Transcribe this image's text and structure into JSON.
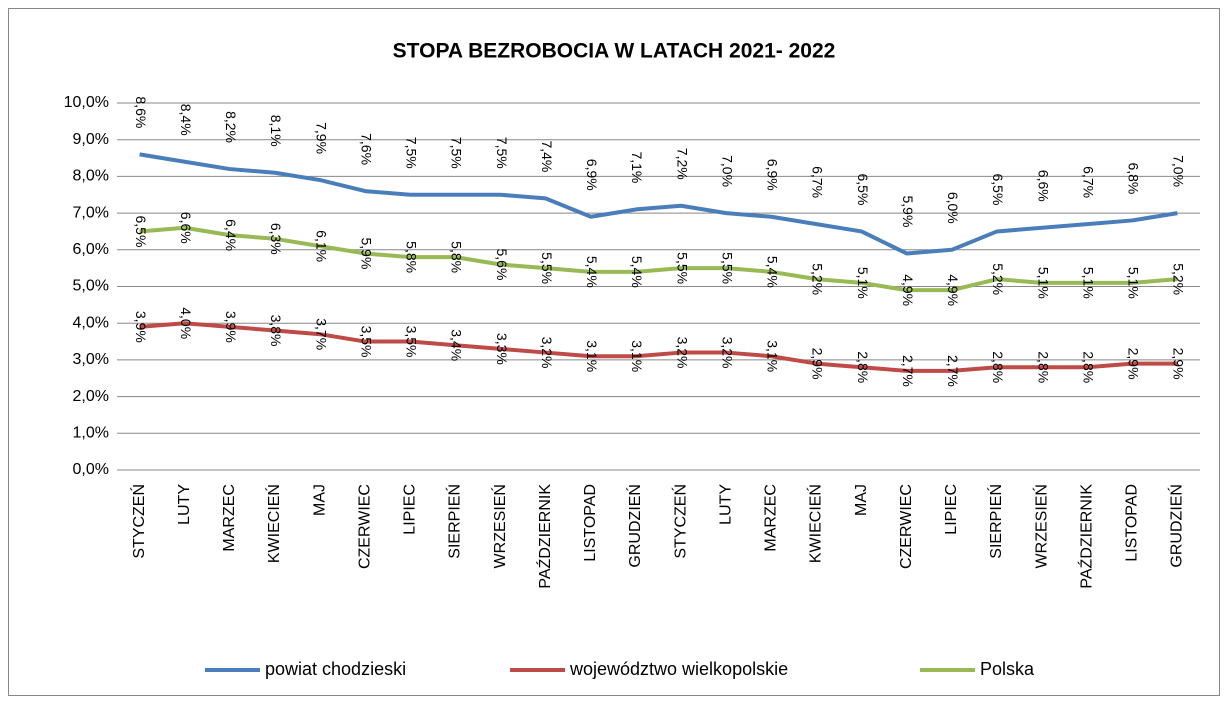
{
  "chart_data": {
    "type": "line",
    "title": "STOPA BEZROBOCIA W LATACH 2021- 2022",
    "categories": [
      "STYCZEŃ",
      "LUTY",
      "MARZEC",
      "KWIECIEŃ",
      "MAJ",
      "CZERWIEC",
      "LIPIEC",
      "SIERPIEŃ",
      "WRZESIEŃ",
      "PAŹDZIERNIK",
      "LISTOPAD",
      "GRUDZIEŃ",
      "STYCZEŃ",
      "LUTY",
      "MARZEC",
      "KWIECIEŃ",
      "MAJ",
      "CZERWIEC",
      "LIPIEC",
      "SIERPIEŃ",
      "WRZESIEŃ",
      "PAŹDZIERNIK",
      "LISTOPAD",
      "GRUDZIEŃ"
    ],
    "series": [
      {
        "name": "powiat chodzieski",
        "color": "#4a7ebb",
        "values": [
          8.6,
          8.4,
          8.2,
          8.1,
          7.9,
          7.6,
          7.5,
          7.5,
          7.5,
          7.4,
          6.9,
          7.1,
          7.2,
          7.0,
          6.9,
          6.7,
          6.5,
          5.9,
          6.0,
          6.5,
          6.6,
          6.7,
          6.8,
          7.0
        ],
        "value_labels": [
          "8,6%",
          "8,4%",
          "8,2%",
          "8,1%",
          "7,9%",
          "7,6%",
          "7,5%",
          "7,5%",
          "7,5%",
          "7,4%",
          "6,9%",
          "7,1%",
          "7,2%",
          "7,0%",
          "6,9%",
          "6,7%",
          "6,5%",
          "5,9%",
          "6,0%",
          "6,5%",
          "6,6%",
          "6,7%",
          "6,8%",
          "7,0%"
        ]
      },
      {
        "name": "województwo wielkopolskie",
        "color": "#be4b48",
        "values": [
          3.9,
          4.0,
          3.9,
          3.8,
          3.7,
          3.5,
          3.5,
          3.4,
          3.3,
          3.2,
          3.1,
          3.1,
          3.2,
          3.2,
          3.1,
          2.9,
          2.8,
          2.7,
          2.7,
          2.8,
          2.8,
          2.8,
          2.9,
          2.9
        ],
        "value_labels": [
          "3,9%",
          "4,0%",
          "3,9%",
          "3,8%",
          "3,7%",
          "3,5%",
          "3,5%",
          "3,4%",
          "3,3%",
          "3,2%",
          "3,1%",
          "3,1%",
          "3,2%",
          "3,2%",
          "3,1%",
          "2,9%",
          "2,8%",
          "2,7%",
          "2,7%",
          "2,8%",
          "2,8%",
          "2,8%",
          "2,9%",
          "2,9%"
        ]
      },
      {
        "name": "Polska",
        "color": "#98b954",
        "values": [
          6.5,
          6.6,
          6.4,
          6.3,
          6.1,
          5.9,
          5.8,
          5.8,
          5.6,
          5.5,
          5.4,
          5.4,
          5.5,
          5.5,
          5.4,
          5.2,
          5.1,
          4.9,
          4.9,
          5.2,
          5.1,
          5.1,
          5.1,
          5.2
        ],
        "value_labels": [
          "6,5%",
          "6,6%",
          "6,4%",
          "6,3%",
          "6,1%",
          "5,9%",
          "5,8%",
          "5,8%",
          "5,6%",
          "5,5%",
          "5,4%",
          "5,4%",
          "5,5%",
          "5,5%",
          "5,4%",
          "5,2%",
          "5,1%",
          "4,9%",
          "4,9%",
          "5,2%",
          "5,1%",
          "5,1%",
          "5,1%",
          "5,2%"
        ]
      }
    ],
    "ylim": [
      0,
      10
    ],
    "yticks": [
      {
        "value": 0,
        "label": "0,0%"
      },
      {
        "value": 1,
        "label": "1,0%"
      },
      {
        "value": 2,
        "label": "2,0%"
      },
      {
        "value": 3,
        "label": "3,0%"
      },
      {
        "value": 4,
        "label": "4,0%"
      },
      {
        "value": 5,
        "label": "5,0%"
      },
      {
        "value": 6,
        "label": "6,0%"
      },
      {
        "value": 7,
        "label": "7,0%"
      },
      {
        "value": 8,
        "label": "8,0%"
      },
      {
        "value": 9,
        "label": "9,0%"
      },
      {
        "value": 10,
        "label": "10,0%"
      }
    ],
    "grid": true,
    "legend": "bottom"
  }
}
